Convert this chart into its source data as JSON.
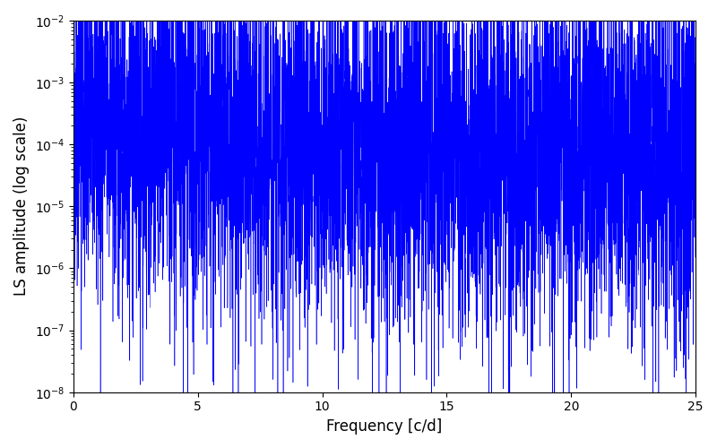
{
  "xlabel": "Frequency [c/d]",
  "ylabel": "LS amplitude (log scale)",
  "xlim": [
    0,
    25
  ],
  "ylim": [
    1e-08,
    0.01
  ],
  "line_color": "#0000ff",
  "background_color": "#ffffff",
  "figsize": [
    8.0,
    5.0
  ],
  "dpi": 100,
  "xticks": [
    0,
    5,
    10,
    15,
    20,
    25
  ],
  "n_points": 6000,
  "seed": 42
}
